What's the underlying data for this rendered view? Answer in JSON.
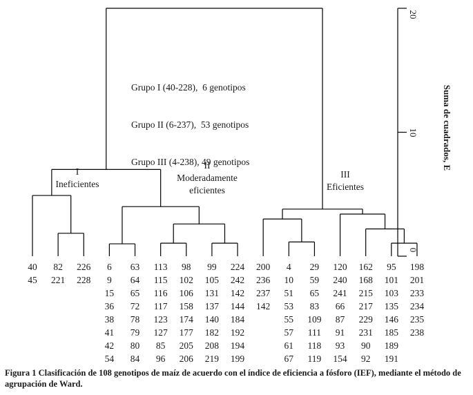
{
  "figure": {
    "caption": "Figura 1 Clasificación de 108 genotipos de maíz de acuerdo con el índice de eficiencia a fósforo (IEF), mediante el método de agrupación de Ward.",
    "group_summary": {
      "line1": "Grupo I (40-228),  6 genotipos",
      "line2": "Grupo II (6-237),  53 genotipos",
      "line3": "Grupo III (4-238), 49 genotipos"
    },
    "cluster_labels": {
      "c1_numeral": "I",
      "c1_name": "Ineficientes",
      "c2_numeral": "II",
      "c2_name_line1": "Moderadamente",
      "c2_name_line2": "eficientes",
      "c3_numeral": "III",
      "c3_name": "Eficientes"
    },
    "axis": {
      "title": "Suma de cuadrados, E",
      "ticks": [
        0,
        10,
        20
      ]
    },
    "line_color": "#000000",
    "background": "#ffffff"
  },
  "chart_data": {
    "type": "dendrogram",
    "title": "",
    "ylabel": "Suma de cuadrados, E",
    "ylim": [
      0,
      20
    ],
    "yticks": [
      0,
      10,
      20
    ],
    "groups": [
      {
        "numeral": "I",
        "name": "Ineficientes",
        "range": "40-228",
        "count": 6
      },
      {
        "numeral": "II",
        "name": "Moderadamente eficientes",
        "range": "6-237",
        "count": 53
      },
      {
        "numeral": "III",
        "name": "Eficientes",
        "range": "4-238",
        "count": 49
      }
    ],
    "leaf_columns": [
      [
        40,
        45
      ],
      [
        82,
        221
      ],
      [
        226,
        228
      ],
      [
        6,
        9,
        15,
        36,
        38,
        41,
        42,
        54
      ],
      [
        63,
        64,
        65,
        72,
        78,
        79,
        80,
        84
      ],
      [
        113,
        115,
        116,
        117,
        123,
        127,
        85,
        96
      ],
      [
        98,
        102,
        106,
        158,
        174,
        177,
        205,
        206
      ],
      [
        99,
        105,
        131,
        137,
        140,
        182,
        208,
        219
      ],
      [
        224,
        242,
        142,
        144,
        184,
        192,
        194,
        199
      ],
      [
        200,
        236,
        237,
        142
      ],
      [
        4,
        10,
        51,
        53,
        55,
        57,
        61,
        67
      ],
      [
        29,
        59,
        65,
        83,
        109,
        111,
        118,
        119
      ],
      [
        120,
        240,
        241,
        66,
        87,
        91,
        93,
        154
      ],
      [
        162,
        168,
        215,
        217,
        229,
        231,
        90,
        92
      ],
      [
        95,
        101,
        103,
        135,
        146,
        185,
        189,
        191
      ],
      [
        198,
        201,
        233,
        234,
        235,
        238
      ]
    ],
    "tree": {
      "h": 20,
      "children": [
        {
          "h": 7.0,
          "children": [
            {
              "h": 4.9,
              "children": [
                {
                  "leaf": 0
                },
                {
                  "h": 1.85,
                  "children": [
                    {
                      "leaf": 1
                    },
                    {
                      "leaf": 2
                    }
                  ]
                }
              ]
            },
            {
              "h": 4.0,
              "children": [
                {
                  "h": 1.0,
                  "children": [
                    {
                      "leaf": 3
                    },
                    {
                      "leaf": 4
                    }
                  ]
                },
                {
                  "h": 2.6,
                  "children": [
                    {
                      "h": 1.05,
                      "children": [
                        {
                          "leaf": 5
                        },
                        {
                          "leaf": 6
                        }
                      ]
                    },
                    {
                      "h": 1.05,
                      "children": [
                        {
                          "leaf": 7
                        },
                        {
                          "leaf": 8
                        }
                      ]
                    }
                  ]
                }
              ]
            }
          ]
        },
        {
          "h": 3.8,
          "children": [
            {
              "h": 3.0,
              "children": [
                {
                  "leaf": 9
                },
                {
                  "h": 1.15,
                  "children": [
                    {
                      "leaf": 10
                    },
                    {
                      "leaf": 11
                    }
                  ]
                }
              ]
            },
            {
              "h": 3.4,
              "children": [
                {
                  "leaf": 12
                },
                {
                  "h": 2.2,
                  "children": [
                    {
                      "leaf": 13
                    },
                    {
                      "h": 1.05,
                      "children": [
                        {
                          "leaf": 14
                        },
                        {
                          "leaf": 15
                        }
                      ]
                    }
                  ]
                }
              ]
            }
          ]
        }
      ]
    }
  }
}
